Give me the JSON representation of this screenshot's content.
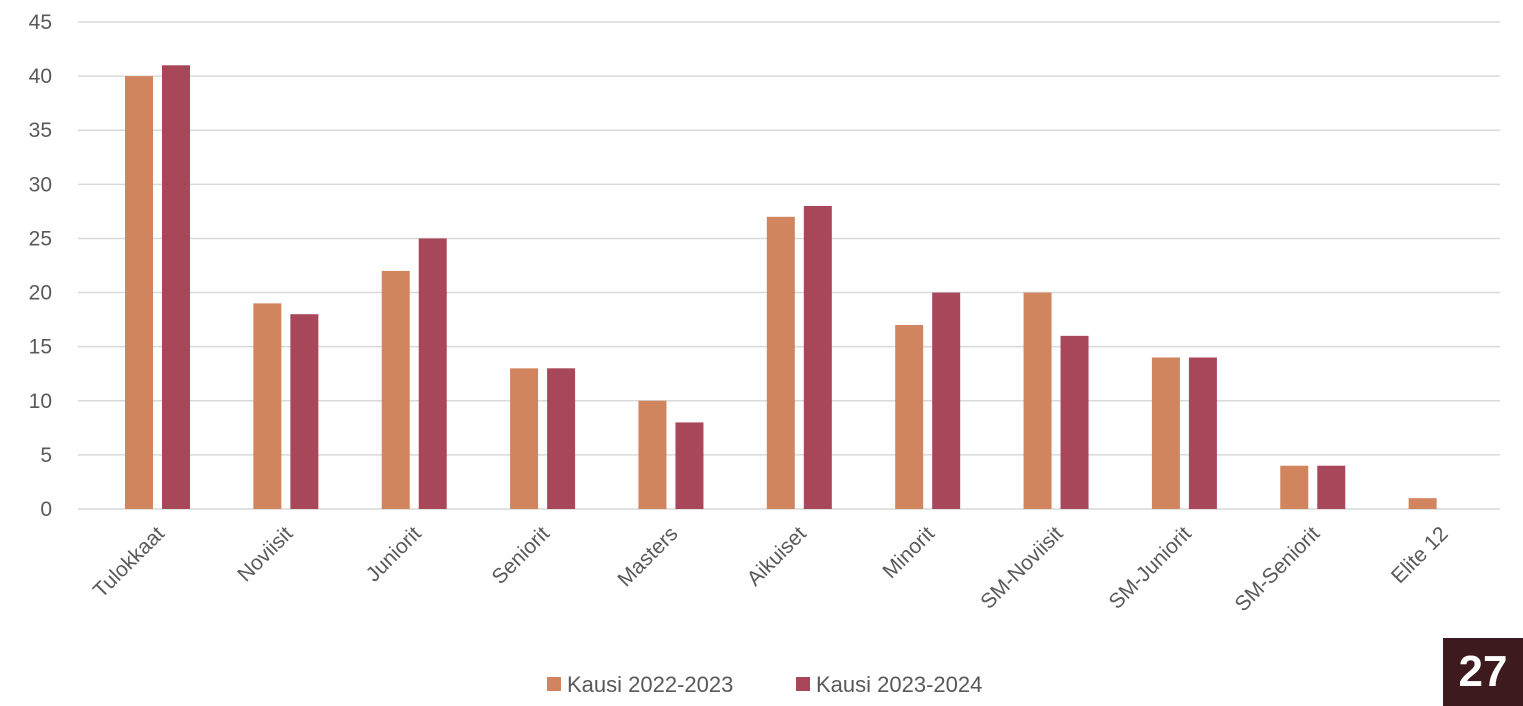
{
  "chart_data": {
    "type": "bar",
    "categories": [
      "Tulokkaat",
      "Noviisit",
      "Juniorit",
      "Seniorit",
      "Masters",
      "Aikuiset",
      "Minorit",
      "SM-Noviisit",
      "SM-Juniorit",
      "SM-Seniorit",
      "Elite 12"
    ],
    "series": [
      {
        "name": "Kausi 2022-2023",
        "color": "#d0855f",
        "values": [
          40,
          19,
          22,
          13,
          10,
          27,
          17,
          20,
          14,
          4,
          1
        ]
      },
      {
        "name": "Kausi 2023-2024",
        "color": "#a8475a",
        "values": [
          41,
          18,
          25,
          13,
          8,
          28,
          20,
          16,
          14,
          4,
          null
        ]
      }
    ],
    "title": "",
    "xlabel": "",
    "ylabel": "",
    "ylim": [
      0,
      45
    ],
    "yticks": [
      0,
      5,
      10,
      15,
      20,
      25,
      30,
      35,
      40,
      45
    ],
    "grid": "horizontal",
    "legend_position": "bottom-center"
  },
  "page_number": "27",
  "colors": {
    "gridline": "#d9d9d9",
    "text": "#595959",
    "badge_bg": "#3d1a1e"
  }
}
